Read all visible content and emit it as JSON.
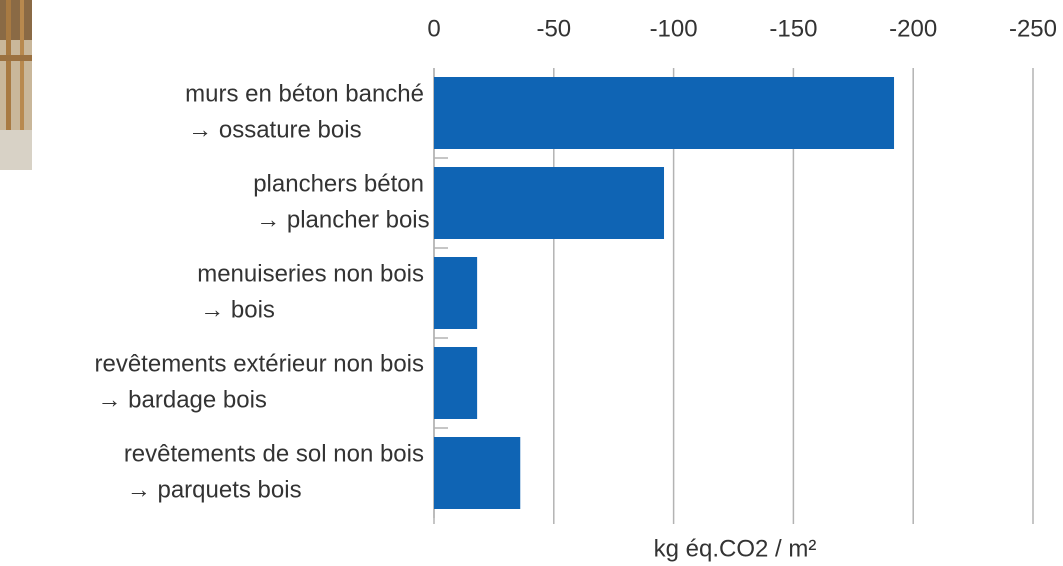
{
  "chart_data": {
    "type": "hbar",
    "categories": [
      [
        "murs en béton banché",
        "→ ossature bois"
      ],
      [
        "planchers béton",
        "→ plancher bois"
      ],
      [
        "menuiseries non bois",
        "→ bois"
      ],
      [
        "revêtements extérieur non bois",
        "→ bardage bois"
      ],
      [
        "revêtements de sol non bois",
        "→ parquets bois"
      ]
    ],
    "values": [
      -192,
      -96,
      -18,
      -18,
      -36
    ],
    "color": "#0f64b4",
    "xlabel": "kg éq.CO2 / m²",
    "xlim": [
      0,
      -250
    ],
    "xticks": [
      0,
      -50,
      -100,
      -150,
      -200,
      -250
    ],
    "grid": true
  }
}
